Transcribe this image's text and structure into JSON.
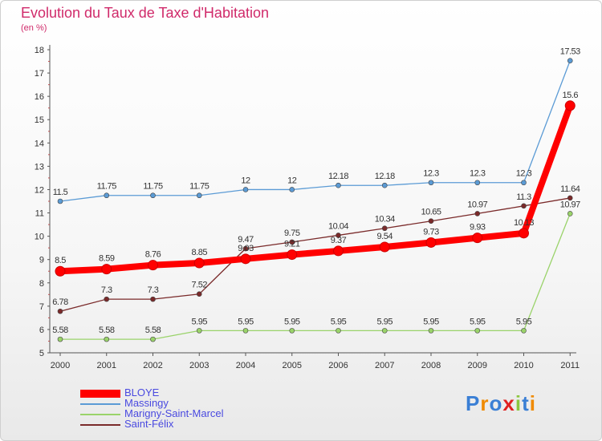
{
  "chart_data": {
    "type": "line",
    "title": "Evolution du Taux de Taxe d'Habitation",
    "subtitle": "(en %)",
    "x": [
      "2000",
      "2001",
      "2002",
      "2003",
      "2004",
      "2005",
      "2006",
      "2007",
      "2008",
      "2009",
      "2010",
      "2011"
    ],
    "ylim": [
      5,
      18
    ],
    "yticks": [
      5,
      6,
      7,
      8,
      9,
      10,
      11,
      12,
      13,
      14,
      15,
      16,
      17,
      18
    ],
    "grid": false,
    "legend_position": "bottom-left",
    "series": [
      {
        "name": "Massingy",
        "color": "#5b9bd5",
        "values": [
          11.5,
          11.75,
          11.75,
          11.75,
          12,
          12,
          12.18,
          12.18,
          12.3,
          12.3,
          12.3,
          17.53
        ],
        "labels": [
          "11.5",
          "11.75",
          "11.75",
          "11.75",
          "12",
          "12",
          "12.18",
          "12.18",
          "12.3",
          "12.3",
          "12.3",
          "17.53"
        ]
      },
      {
        "name": "Marigny-Saint-Marcel",
        "color": "#9ad36a",
        "values": [
          5.58,
          5.58,
          5.58,
          5.95,
          5.95,
          5.95,
          5.95,
          5.95,
          5.95,
          5.95,
          5.95,
          10.97
        ],
        "labels": [
          "5.58",
          "5.58",
          "5.58",
          "5.95",
          "5.95",
          "5.95",
          "5.95",
          "5.95",
          "5.95",
          "5.95",
          "5.95",
          "10.97"
        ]
      },
      {
        "name": "Saint-Félix",
        "color": "#7a2a2a",
        "values": [
          6.78,
          7.3,
          7.3,
          7.52,
          9.47,
          9.75,
          10.04,
          10.34,
          10.65,
          10.97,
          11.3,
          11.64
        ],
        "labels": [
          "6.78",
          "7.3",
          "7.3",
          "7.52",
          "9.47",
          "9.75",
          "10.04",
          "10.34",
          "10.65",
          "10.97",
          "11.3",
          "11.64"
        ]
      },
      {
        "name": "BLOYE",
        "color": "#ff0000",
        "values": [
          8.5,
          8.59,
          8.76,
          8.85,
          9.03,
          9.21,
          9.37,
          9.54,
          9.73,
          9.93,
          10.13,
          15.6
        ],
        "labels": [
          "8.5",
          "8.59",
          "8.76",
          "8.85",
          "9.03",
          "9.21",
          "9.37",
          "9.54",
          "9.73",
          "9.93",
          "10.13",
          "15.6"
        ]
      }
    ]
  },
  "legend": [
    {
      "label": "BLOYE",
      "color": "#ff0000"
    },
    {
      "label": "Massingy",
      "color": "#5b9bd5"
    },
    {
      "label": "Marigny-Saint-Marcel",
      "color": "#9ad36a"
    },
    {
      "label": "Saint-Félix",
      "color": "#7a2a2a"
    }
  ],
  "logo": {
    "letters": [
      "P",
      "r",
      "o",
      "x",
      "i",
      "t",
      "i"
    ],
    "colors": [
      "#3a7fd5",
      "#f08a00",
      "#3a7fd5",
      "#e02020",
      "#8cc63f",
      "#3a7fd5",
      "#f08a00"
    ]
  }
}
